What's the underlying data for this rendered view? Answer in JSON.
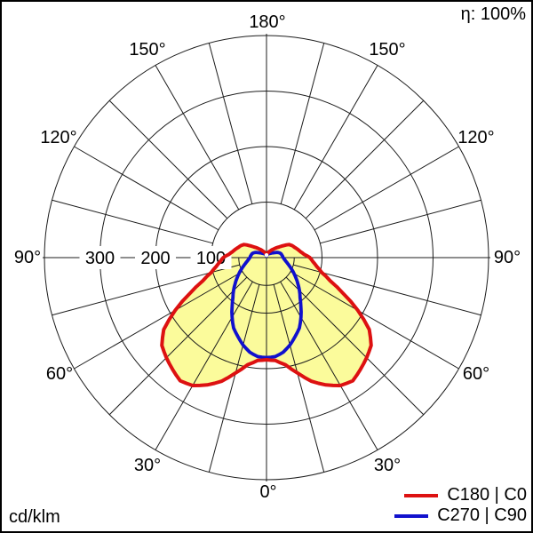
{
  "header": {
    "eta_label": "η: 100%"
  },
  "footer": {
    "unit_label": "cd/klm"
  },
  "legend": [
    {
      "label": "C180 | C0",
      "color": "#dd1111"
    },
    {
      "label": "C270 | C90",
      "color": "#1111cd"
    }
  ],
  "chart_data": {
    "type": "polar",
    "subtype": "luminous-intensity-distribution",
    "unit": "cd/klm",
    "efficiency": "η: 100%",
    "gamma_zero_direction": "down",
    "angle_labels": {
      "top": "180°",
      "upper_left": "150°",
      "upper_right": "150°",
      "mid_upper_left": "120°",
      "mid_upper_right": "120°",
      "left": "90°",
      "right": "90°",
      "mid_lower_left": "60°",
      "mid_lower_right": "60°",
      "lower_left": "30°",
      "lower_right": "30°",
      "bottom": "0°"
    },
    "radial_ticks": [
      "300",
      "200",
      "100"
    ],
    "rings": [
      100,
      200,
      300,
      400
    ],
    "hub_radius_cd": 50,
    "ray_step_deg": 15,
    "gamma_step_deg": 5,
    "gammas": [
      0,
      5,
      10,
      15,
      20,
      25,
      30,
      35,
      40,
      45,
      50,
      55,
      60,
      65,
      70,
      75,
      80,
      85,
      90,
      95,
      100,
      105,
      110,
      115,
      120,
      125,
      130,
      135,
      140,
      145,
      150,
      155,
      160,
      165,
      170,
      175,
      180
    ],
    "series": [
      {
        "name": "C180 | C0",
        "color": "#dd1111",
        "fill": "#fbfb9b",
        "values": [
          184,
          186,
          196,
          215,
          237,
          253,
          266,
          271,
          263,
          255,
          246,
          226,
          190,
          152,
          122,
          103,
          92,
          84,
          78,
          68,
          62,
          58,
          54,
          51,
          47,
          38,
          30,
          25,
          20,
          17,
          14,
          12,
          10,
          8,
          7,
          6,
          5
        ]
      },
      {
        "name": "C270 | C90",
        "color": "#1111cd",
        "fill": null,
        "values": [
          180,
          179,
          173,
          163,
          151,
          140,
          124,
          108,
          94,
          84,
          74,
          65,
          57,
          50,
          44,
          39,
          35,
          32,
          30,
          29,
          28,
          27,
          25,
          22,
          18,
          15,
          13,
          11,
          10,
          9,
          8,
          7,
          6,
          5,
          4,
          4,
          3
        ]
      }
    ]
  }
}
